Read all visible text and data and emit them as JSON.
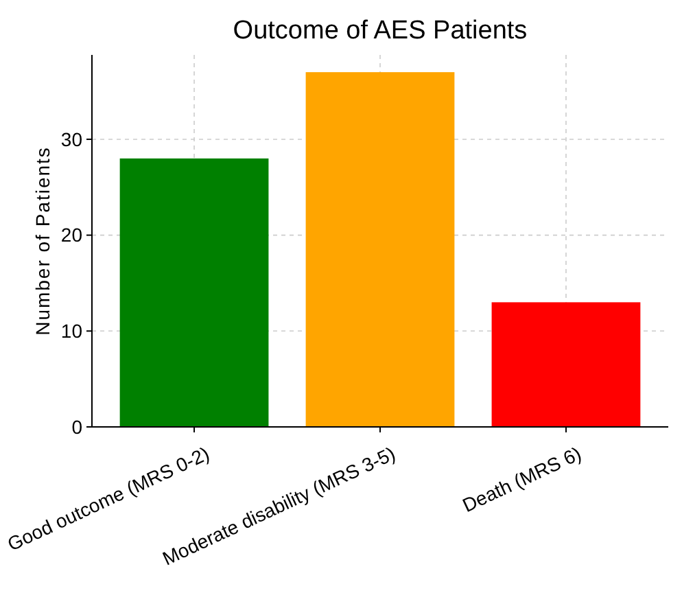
{
  "chart_data": {
    "type": "bar",
    "title": "Outcome of AES Patients",
    "ylabel": "Number of Patients",
    "categories": [
      "Good outcome (MRS 0-2)",
      "Moderate disability (MRS 3-5)",
      "Death (MRS 6)"
    ],
    "values": [
      28,
      37,
      13
    ],
    "colors": [
      "#008000",
      "#ffa500",
      "#ff0000"
    ],
    "ylim": [
      0,
      38.8
    ],
    "yticks": [
      0,
      10,
      20,
      30
    ],
    "grid": true
  }
}
